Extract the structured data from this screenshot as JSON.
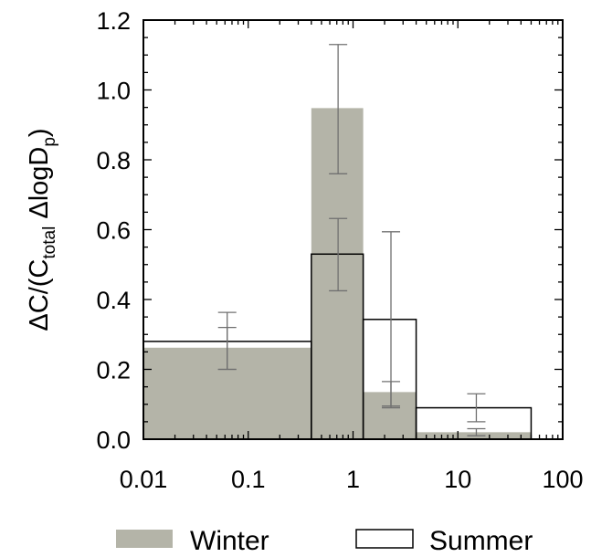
{
  "chart_data": {
    "type": "histogram",
    "ylabel": {
      "prefix": "ΔC/(C",
      "sub": "total",
      "middle": " ΔlogD",
      "sub2": "p",
      "suffix": ")"
    },
    "x_scale": "log",
    "xlim": [
      0.01,
      100
    ],
    "ylim": [
      0,
      1.2
    ],
    "x_ticks": [
      0.01,
      0.1,
      1,
      10,
      100
    ],
    "x_tick_labels": [
      "0.01",
      "0.1",
      "1",
      "10",
      "100"
    ],
    "y_ticks": [
      0,
      0.2,
      0.4,
      0.6,
      0.8,
      1.0,
      1.2
    ],
    "y_tick_labels": [
      "0.0",
      "0.2",
      "0.4",
      "0.6",
      "0.8",
      "1.0",
      "1.2"
    ],
    "bin_edges": [
      0.01,
      0.4,
      1.25,
      4,
      50
    ],
    "legend_position": "bottom",
    "series": [
      {
        "name": "Winter",
        "fill": "#b4b4a8",
        "stroke": "none",
        "values": [
          0.262,
          0.948,
          0.135,
          0.02
        ],
        "error_x": [
          0.063,
          0.72,
          2.3,
          15
        ],
        "error_low": [
          0.2,
          0.76,
          0.09,
          0.01
        ],
        "error_high": [
          0.32,
          1.13,
          0.165,
          0.03
        ]
      },
      {
        "name": "Summer",
        "fill": "none",
        "stroke": "#000000",
        "values": [
          0.28,
          0.53,
          0.343,
          0.09
        ],
        "error_x": [
          0.063,
          0.72,
          2.3,
          15
        ],
        "error_low": [
          0.2,
          0.425,
          0.095,
          0.05
        ],
        "error_high": [
          0.363,
          0.632,
          0.594,
          0.13
        ]
      }
    ]
  }
}
